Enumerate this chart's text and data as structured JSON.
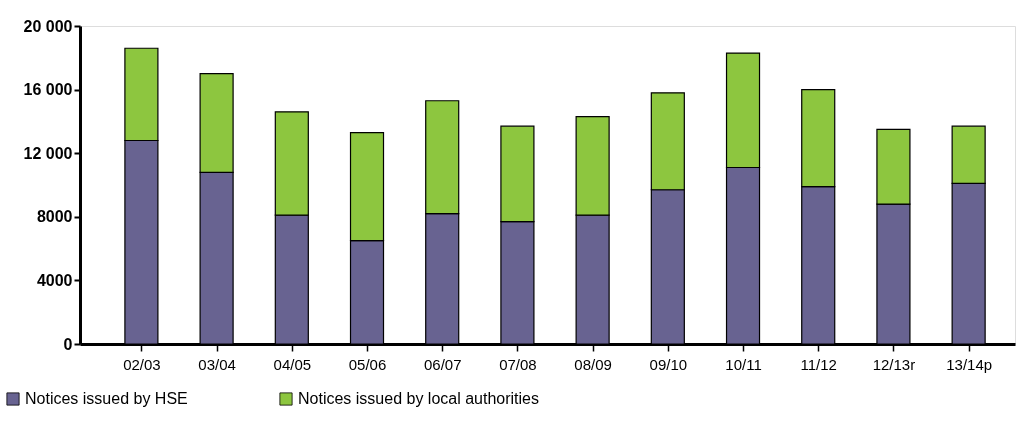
{
  "chart_data": {
    "type": "bar",
    "stacked": true,
    "categories": [
      "02/03",
      "03/04",
      "04/05",
      "05/06",
      "06/07",
      "07/08",
      "08/09",
      "09/10",
      "10/11",
      "11/12",
      "12/13r",
      "13/14p"
    ],
    "series": [
      {
        "name": "Notices issued by HSE",
        "color": "#686391",
        "values": [
          12800,
          10800,
          8100,
          6500,
          8200,
          7700,
          8100,
          9700,
          11100,
          9900,
          8800,
          10100
        ]
      },
      {
        "name": "Notices issued by local authorities",
        "color": "#8dc63f",
        "values": [
          5800,
          6200,
          6500,
          6800,
          7100,
          6000,
          6200,
          6100,
          7200,
          6100,
          4700,
          3600
        ]
      }
    ],
    "ylim": [
      0,
      20000
    ],
    "yticks": [
      0,
      4000,
      8000,
      {
        "value": 12000,
        "label": "12 000"
      },
      {
        "value": 16000,
        "label": "16 000"
      },
      {
        "value": 20000,
        "label": "20 000"
      }
    ],
    "grid": false,
    "legend": "bottom left"
  }
}
